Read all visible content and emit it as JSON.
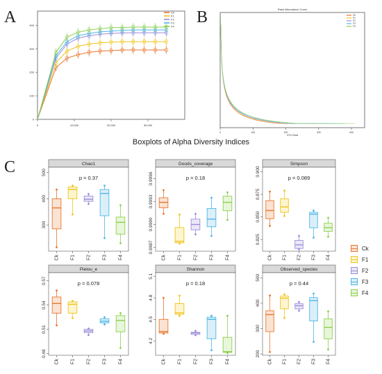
{
  "panel_labels": [
    "A",
    "B",
    "C"
  ],
  "boxplot_title": "Boxplots of Alpha Diversity Indices",
  "groups": [
    "Ck",
    "F1",
    "F2",
    "F3",
    "F4"
  ],
  "group_colors": {
    "Ck": "#e8752e",
    "F1": "#f0c419",
    "F2": "#9b8cd9",
    "F3": "#4cb6e6",
    "F4": "#8ccf4d"
  },
  "legend": [
    {
      "label": "Ck",
      "color": "#e8752e",
      "fill": "#fbe3d3"
    },
    {
      "label": "F1",
      "color": "#f0c419",
      "fill": "#fdf5d0"
    },
    {
      "label": "F2",
      "color": "#9b8cd9",
      "fill": "#ebe8f8"
    },
    {
      "label": "F3",
      "color": "#4cb6e6",
      "fill": "#dbeff9"
    },
    {
      "label": "F4",
      "color": "#8ccf4d",
      "fill": "#e8f6da"
    }
  ],
  "chart_data": [
    {
      "type": "line",
      "panel": "A",
      "x_ticks": [
        "0",
        "10,000",
        "20,000",
        "30,000"
      ],
      "y_ticks": [
        "0",
        "100",
        "200",
        "300",
        "400"
      ],
      "xlim": [
        0,
        40000
      ],
      "ylim": [
        0,
        460
      ],
      "legend": [
        "Ck",
        "F1",
        "F2",
        "F3",
        "F4"
      ],
      "x": [
        0,
        5000,
        8000,
        11000,
        14000,
        17000,
        20000,
        23000,
        26000,
        29000,
        32000,
        35000
      ],
      "series": [
        {
          "name": "Ck",
          "color": "#e8752e",
          "values": [
            0,
            220,
            260,
            275,
            285,
            290,
            292,
            295,
            295,
            295,
            295,
            295
          ]
        },
        {
          "name": "F1",
          "color": "#f0c419",
          "values": [
            0,
            240,
            290,
            310,
            320,
            325,
            328,
            330,
            330,
            330,
            330,
            330
          ]
        },
        {
          "name": "F2",
          "color": "#9b8cd9",
          "values": [
            0,
            260,
            320,
            345,
            355,
            362,
            365,
            367,
            368,
            368,
            368,
            368
          ]
        },
        {
          "name": "F3",
          "color": "#4cb6e6",
          "values": [
            0,
            270,
            330,
            355,
            365,
            372,
            375,
            378,
            380,
            380,
            380,
            380
          ]
        },
        {
          "name": "F4",
          "color": "#8ccf4d",
          "values": [
            0,
            285,
            350,
            370,
            380,
            385,
            390,
            390,
            392,
            392,
            392,
            392
          ]
        }
      ]
    },
    {
      "type": "line",
      "panel": "B",
      "title": "Rank Abundance Curve",
      "xlabel": "OTU Rank",
      "x_ticks": [
        "0",
        "100",
        "200",
        "300",
        "400"
      ],
      "xlim": [
        0,
        440
      ],
      "legend": [
        "Ck",
        "F1",
        "F2",
        "F3",
        "F4"
      ],
      "series": [
        {
          "name": "Ck",
          "color": "#e8752e",
          "end_rank": 300
        },
        {
          "name": "F1",
          "color": "#f0c419",
          "end_rank": 330
        },
        {
          "name": "F2",
          "color": "#9b8cd9",
          "end_rank": 350
        },
        {
          "name": "F3",
          "color": "#4cb6e6",
          "end_rank": 380
        },
        {
          "name": "F4",
          "color": "#8ccf4d",
          "end_rank": 410
        }
      ]
    },
    {
      "type": "box",
      "facet": "Chao1",
      "p_label": "p = 0.37",
      "ylim": [
        200,
        520
      ],
      "y_ticks": [
        300,
        400,
        500
      ],
      "boxes": [
        {
          "group": "Ck",
          "min": 215,
          "q1": 285,
          "median": 365,
          "q3": 400,
          "max": 435
        },
        {
          "group": "F1",
          "min": 340,
          "q1": 400,
          "median": 435,
          "q3": 445,
          "max": 450
        },
        {
          "group": "F2",
          "min": 380,
          "q1": 390,
          "median": 398,
          "q3": 410,
          "max": 418
        },
        {
          "group": "F3",
          "min": 250,
          "q1": 335,
          "median": 420,
          "q3": 435,
          "max": 450
        },
        {
          "group": "F4",
          "min": 230,
          "q1": 265,
          "median": 310,
          "q3": 330,
          "max": 375
        }
      ],
      "points": [
        {
          "group": "Ck",
          "values": [
            215,
            435
          ]
        },
        {
          "group": "F1",
          "values": [
            340,
            450
          ]
        },
        {
          "group": "F2",
          "values": [
            380,
            418
          ]
        },
        {
          "group": "F3",
          "values": [
            250,
            450
          ]
        },
        {
          "group": "F4",
          "values": [
            230,
            375
          ]
        }
      ]
    },
    {
      "type": "box",
      "facet": "Goods_coverage",
      "p_label": "p = 0.18",
      "ylim": [
        0.99865,
        0.99975
      ],
      "y_ticks": [
        0.9987,
        0.999,
        0.9993,
        0.9996
      ],
      "boxes": [
        {
          "group": "Ck",
          "min": 0.99914,
          "q1": 0.99922,
          "median": 0.99929,
          "q3": 0.99935,
          "max": 0.99945
        },
        {
          "group": "F1",
          "min": 0.99875,
          "q1": 0.99876,
          "median": 0.99878,
          "q3": 0.99896,
          "max": 0.99913
        },
        {
          "group": "F2",
          "min": 0.99887,
          "q1": 0.99893,
          "median": 0.999,
          "q3": 0.99907,
          "max": 0.99914
        },
        {
          "group": "F3",
          "min": 0.99885,
          "q1": 0.99897,
          "median": 0.99907,
          "q3": 0.99921,
          "max": 0.99935
        },
        {
          "group": "F4",
          "min": 0.99906,
          "q1": 0.99918,
          "median": 0.99929,
          "q3": 0.99937,
          "max": 0.99942
        }
      ],
      "points": [
        {
          "group": "Ck",
          "values": [
            0.99914,
            0.99945
          ]
        },
        {
          "group": "F1",
          "values": [
            0.99875,
            0.99913
          ]
        },
        {
          "group": "F2",
          "values": [
            0.99887,
            0.99914
          ]
        },
        {
          "group": "F3",
          "values": [
            0.99885,
            0.99935
          ]
        },
        {
          "group": "F4",
          "values": [
            0.99906,
            0.99942
          ]
        }
      ]
    },
    {
      "type": "box",
      "facet": "Simpson",
      "p_label": "p = 0.089",
      "ylim": [
        0.812,
        0.905
      ],
      "y_ticks": [
        0.825,
        0.85,
        0.875,
        0.9
      ],
      "boxes": [
        {
          "group": "Ck",
          "min": 0.84,
          "q1": 0.848,
          "median": 0.857,
          "q3": 0.868,
          "max": 0.878
        },
        {
          "group": "F1",
          "min": 0.851,
          "q1": 0.855,
          "median": 0.861,
          "q3": 0.87,
          "max": 0.879
        },
        {
          "group": "F2",
          "min": 0.814,
          "q1": 0.815,
          "median": 0.819,
          "q3": 0.824,
          "max": 0.829
        },
        {
          "group": "F3",
          "min": 0.827,
          "q1": 0.838,
          "median": 0.853,
          "q3": 0.855,
          "max": 0.857
        },
        {
          "group": "F4",
          "min": 0.828,
          "q1": 0.834,
          "median": 0.838,
          "q3": 0.843,
          "max": 0.849
        }
      ],
      "points": [
        {
          "group": "Ck",
          "values": [
            0.84,
            0.878
          ]
        },
        {
          "group": "F1",
          "values": [
            0.851,
            0.879
          ]
        },
        {
          "group": "F2",
          "values": [
            0.814,
            0.829
          ]
        },
        {
          "group": "F3",
          "values": [
            0.827,
            0.857
          ]
        },
        {
          "group": "F4",
          "values": [
            0.828,
            0.849
          ]
        }
      ]
    },
    {
      "type": "box",
      "facet": "Pielou_e",
      "p_label": "p = 0.078",
      "ylim": [
        0.478,
        0.58
      ],
      "y_ticks": [
        0.48,
        0.51,
        0.54,
        0.57
      ],
      "boxes": [
        {
          "group": "Ck",
          "min": 0.515,
          "q1": 0.53,
          "median": 0.542,
          "q3": 0.55,
          "max": 0.558
        },
        {
          "group": "F1",
          "min": 0.524,
          "q1": 0.53,
          "median": 0.541,
          "q3": 0.544,
          "max": 0.545
        },
        {
          "group": "F2",
          "min": 0.503,
          "q1": 0.506,
          "median": 0.508,
          "q3": 0.51,
          "max": 0.511
        },
        {
          "group": "F3",
          "min": 0.516,
          "q1": 0.518,
          "median": 0.52,
          "q3": 0.523,
          "max": 0.525
        },
        {
          "group": "F4",
          "min": 0.487,
          "q1": 0.507,
          "median": 0.521,
          "q3": 0.527,
          "max": 0.53
        }
      ],
      "points": [
        {
          "group": "Ck",
          "values": [
            0.515,
            0.558
          ]
        },
        {
          "group": "F1",
          "values": [
            0.524,
            0.545
          ]
        },
        {
          "group": "F2",
          "values": [
            0.503,
            0.511
          ]
        },
        {
          "group": "F3",
          "values": [
            0.516,
            0.525
          ]
        },
        {
          "group": "F4",
          "values": [
            0.487,
            0.53
          ]
        }
      ]
    },
    {
      "type": "box",
      "facet": "Shannon",
      "p_label": "p = 0.18",
      "ylim": [
        4.0,
        5.15
      ],
      "y_ticks": [
        4.2,
        4.5,
        4.8,
        5.1
      ],
      "boxes": [
        {
          "group": "Ck",
          "min": 4.3,
          "q1": 4.31,
          "median": 4.33,
          "q3": 4.5,
          "max": 4.8
        },
        {
          "group": "F1",
          "min": 4.55,
          "q1": 4.57,
          "median": 4.59,
          "q3": 4.72,
          "max": 4.83
        },
        {
          "group": "F2",
          "min": 4.28,
          "q1": 4.29,
          "median": 4.31,
          "q3": 4.32,
          "max": 4.34
        },
        {
          "group": "F3",
          "min": 4.07,
          "q1": 4.23,
          "median": 4.5,
          "q3": 4.53,
          "max": 4.55
        },
        {
          "group": "F4",
          "min": 4.03,
          "q1": 4.04,
          "median": 4.05,
          "q3": 4.25,
          "max": 4.55
        }
      ],
      "points": [
        {
          "group": "Ck",
          "values": [
            4.3,
            4.8
          ]
        },
        {
          "group": "F1",
          "values": [
            4.55,
            4.83
          ]
        },
        {
          "group": "F2",
          "values": [
            4.28,
            4.34
          ]
        },
        {
          "group": "F3",
          "values": [
            4.07,
            4.55
          ]
        },
        {
          "group": "F4",
          "values": [
            4.03,
            4.55
          ]
        }
      ]
    },
    {
      "type": "box",
      "facet": "Observed_species",
      "p_label": "p = 0.44",
      "ylim": [
        195,
        520
      ],
      "y_ticks": [
        200,
        300,
        400,
        500
      ],
      "boxes": [
        {
          "group": "Ck",
          "min": 208,
          "q1": 288,
          "median": 355,
          "q3": 370,
          "max": 430
        },
        {
          "group": "F1",
          "min": 342,
          "q1": 378,
          "median": 420,
          "q3": 428,
          "max": 435
        },
        {
          "group": "F2",
          "min": 370,
          "q1": 378,
          "median": 390,
          "q3": 398,
          "max": 405
        },
        {
          "group": "F3",
          "min": 248,
          "q1": 330,
          "median": 410,
          "q3": 422,
          "max": 438
        },
        {
          "group": "F4",
          "min": 218,
          "q1": 260,
          "median": 305,
          "q3": 338,
          "max": 368
        }
      ],
      "points": [
        {
          "group": "Ck",
          "values": [
            208,
            430
          ]
        },
        {
          "group": "F1",
          "values": [
            342,
            435
          ]
        },
        {
          "group": "F2",
          "values": [
            370,
            405
          ]
        },
        {
          "group": "F3",
          "values": [
            248,
            438
          ]
        },
        {
          "group": "F4",
          "values": [
            218,
            368
          ]
        }
      ]
    }
  ]
}
